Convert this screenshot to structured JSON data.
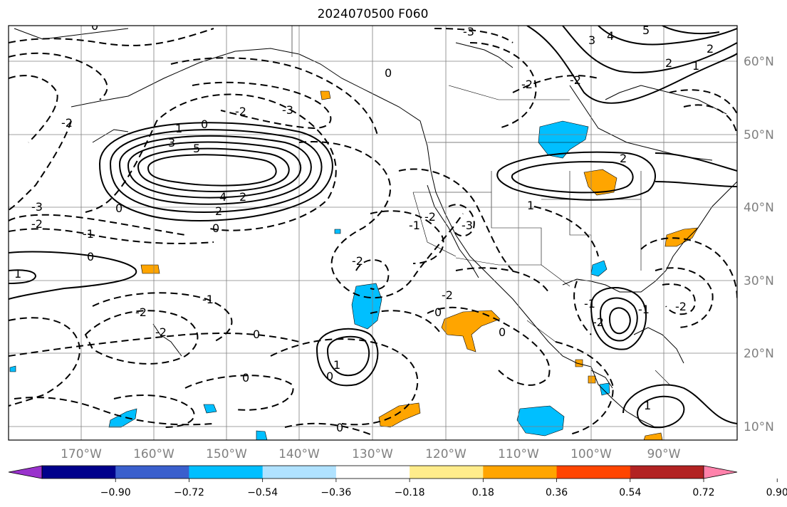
{
  "title": "2024070500 F060",
  "map": {
    "lon_labels": [
      "170°W",
      "160°W",
      "150°W",
      "140°W",
      "130°W",
      "120°W",
      "110°W",
      "100°W",
      "90°W"
    ],
    "lat_labels": [
      "60°N",
      "50°N",
      "40°N",
      "30°N",
      "20°N",
      "10°N"
    ],
    "contour_labels": {
      "positive": [
        "1",
        "5",
        "3",
        "4",
        "2",
        "2",
        "1",
        "2",
        "1",
        "3",
        "4",
        "5",
        "2",
        "1",
        "2",
        "1",
        "1"
      ],
      "zero": [
        "0",
        "0",
        "0",
        "0",
        "0",
        "0",
        "0",
        "0",
        "0",
        "0",
        "0",
        "0"
      ],
      "negative": [
        "-3",
        "-3",
        "-2",
        "-1",
        "-2",
        "-1",
        "-2",
        "-2",
        "-3",
        "-2",
        "-2",
        "-1",
        "-2",
        "-3",
        "-1",
        "-2",
        "-2",
        "-1",
        "-2",
        "-2",
        "-2"
      ]
    }
  },
  "colorbar": {
    "ticks": [
      "−0.90",
      "−0.72",
      "−0.54",
      "−0.36",
      "−0.18",
      "0.18",
      "0.36",
      "0.54",
      "0.72",
      "0.90"
    ],
    "colors": [
      "#9932cc",
      "#00008b",
      "#3a5fcd",
      "#00bfff",
      "#b0e2ff",
      "#ffffff",
      "#ffec8b",
      "#ffa500",
      "#ff4500",
      "#b22222",
      "#ff82ab"
    ]
  }
}
